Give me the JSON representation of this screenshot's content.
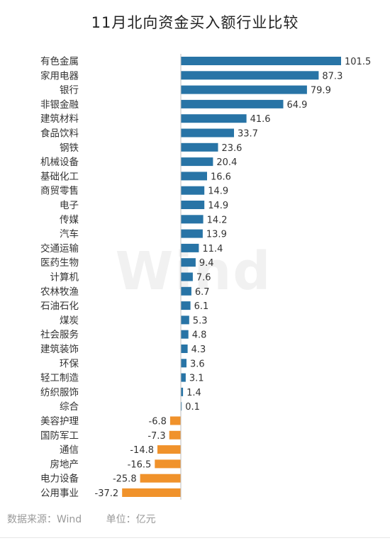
{
  "chart_data": {
    "type": "bar",
    "orientation": "horizontal",
    "title": "11月北向资金买入额行业比较",
    "categories": [
      "有色金属",
      "家用电器",
      "银行",
      "非银金融",
      "建筑材料",
      "食品饮料",
      "钢铁",
      "机械设备",
      "基础化工",
      "商贸零售",
      "电子",
      "传媒",
      "汽车",
      "交通运输",
      "医药生物",
      "计算机",
      "农林牧渔",
      "石油石化",
      "煤炭",
      "社会服务",
      "建筑装饰",
      "环保",
      "轻工制造",
      "纺织服饰",
      "综合",
      "美容护理",
      "国防军工",
      "通信",
      "房地产",
      "电力设备",
      "公用事业"
    ],
    "values": [
      101.5,
      87.3,
      79.9,
      64.9,
      41.6,
      33.7,
      23.6,
      20.4,
      16.6,
      14.9,
      14.9,
      14.2,
      13.9,
      11.4,
      9.4,
      7.6,
      6.7,
      6.1,
      5.3,
      4.8,
      4.3,
      3.6,
      3.1,
      1.4,
      0.1,
      -6.8,
      -7.3,
      -14.8,
      -16.5,
      -25.8,
      -37.2
    ],
    "value_labels": [
      "101.5",
      "87.3",
      "79.9",
      "64.9",
      "41.6",
      "33.7",
      "23.6",
      "20.4",
      "16.6",
      "14.9",
      "14.9",
      "14.2",
      "13.9",
      "11.4",
      "9.4",
      "7.6",
      "6.7",
      "6.1",
      "5.3",
      "4.8",
      "4.3",
      "3.6",
      "3.1",
      "1.4",
      "0.1",
      "-6.8",
      "-7.3",
      "-14.8",
      "-16.5",
      "-25.8",
      "-37.2"
    ],
    "xlim": [
      -37.2,
      101.5
    ],
    "grid": false,
    "legend": "none",
    "positive_color": "#2874a6",
    "negative_color": "#f0922b",
    "label_color": "#333333"
  },
  "footer": {
    "source": "数据来源：Wind",
    "unit": "单位：亿元"
  },
  "watermark": "Wind"
}
